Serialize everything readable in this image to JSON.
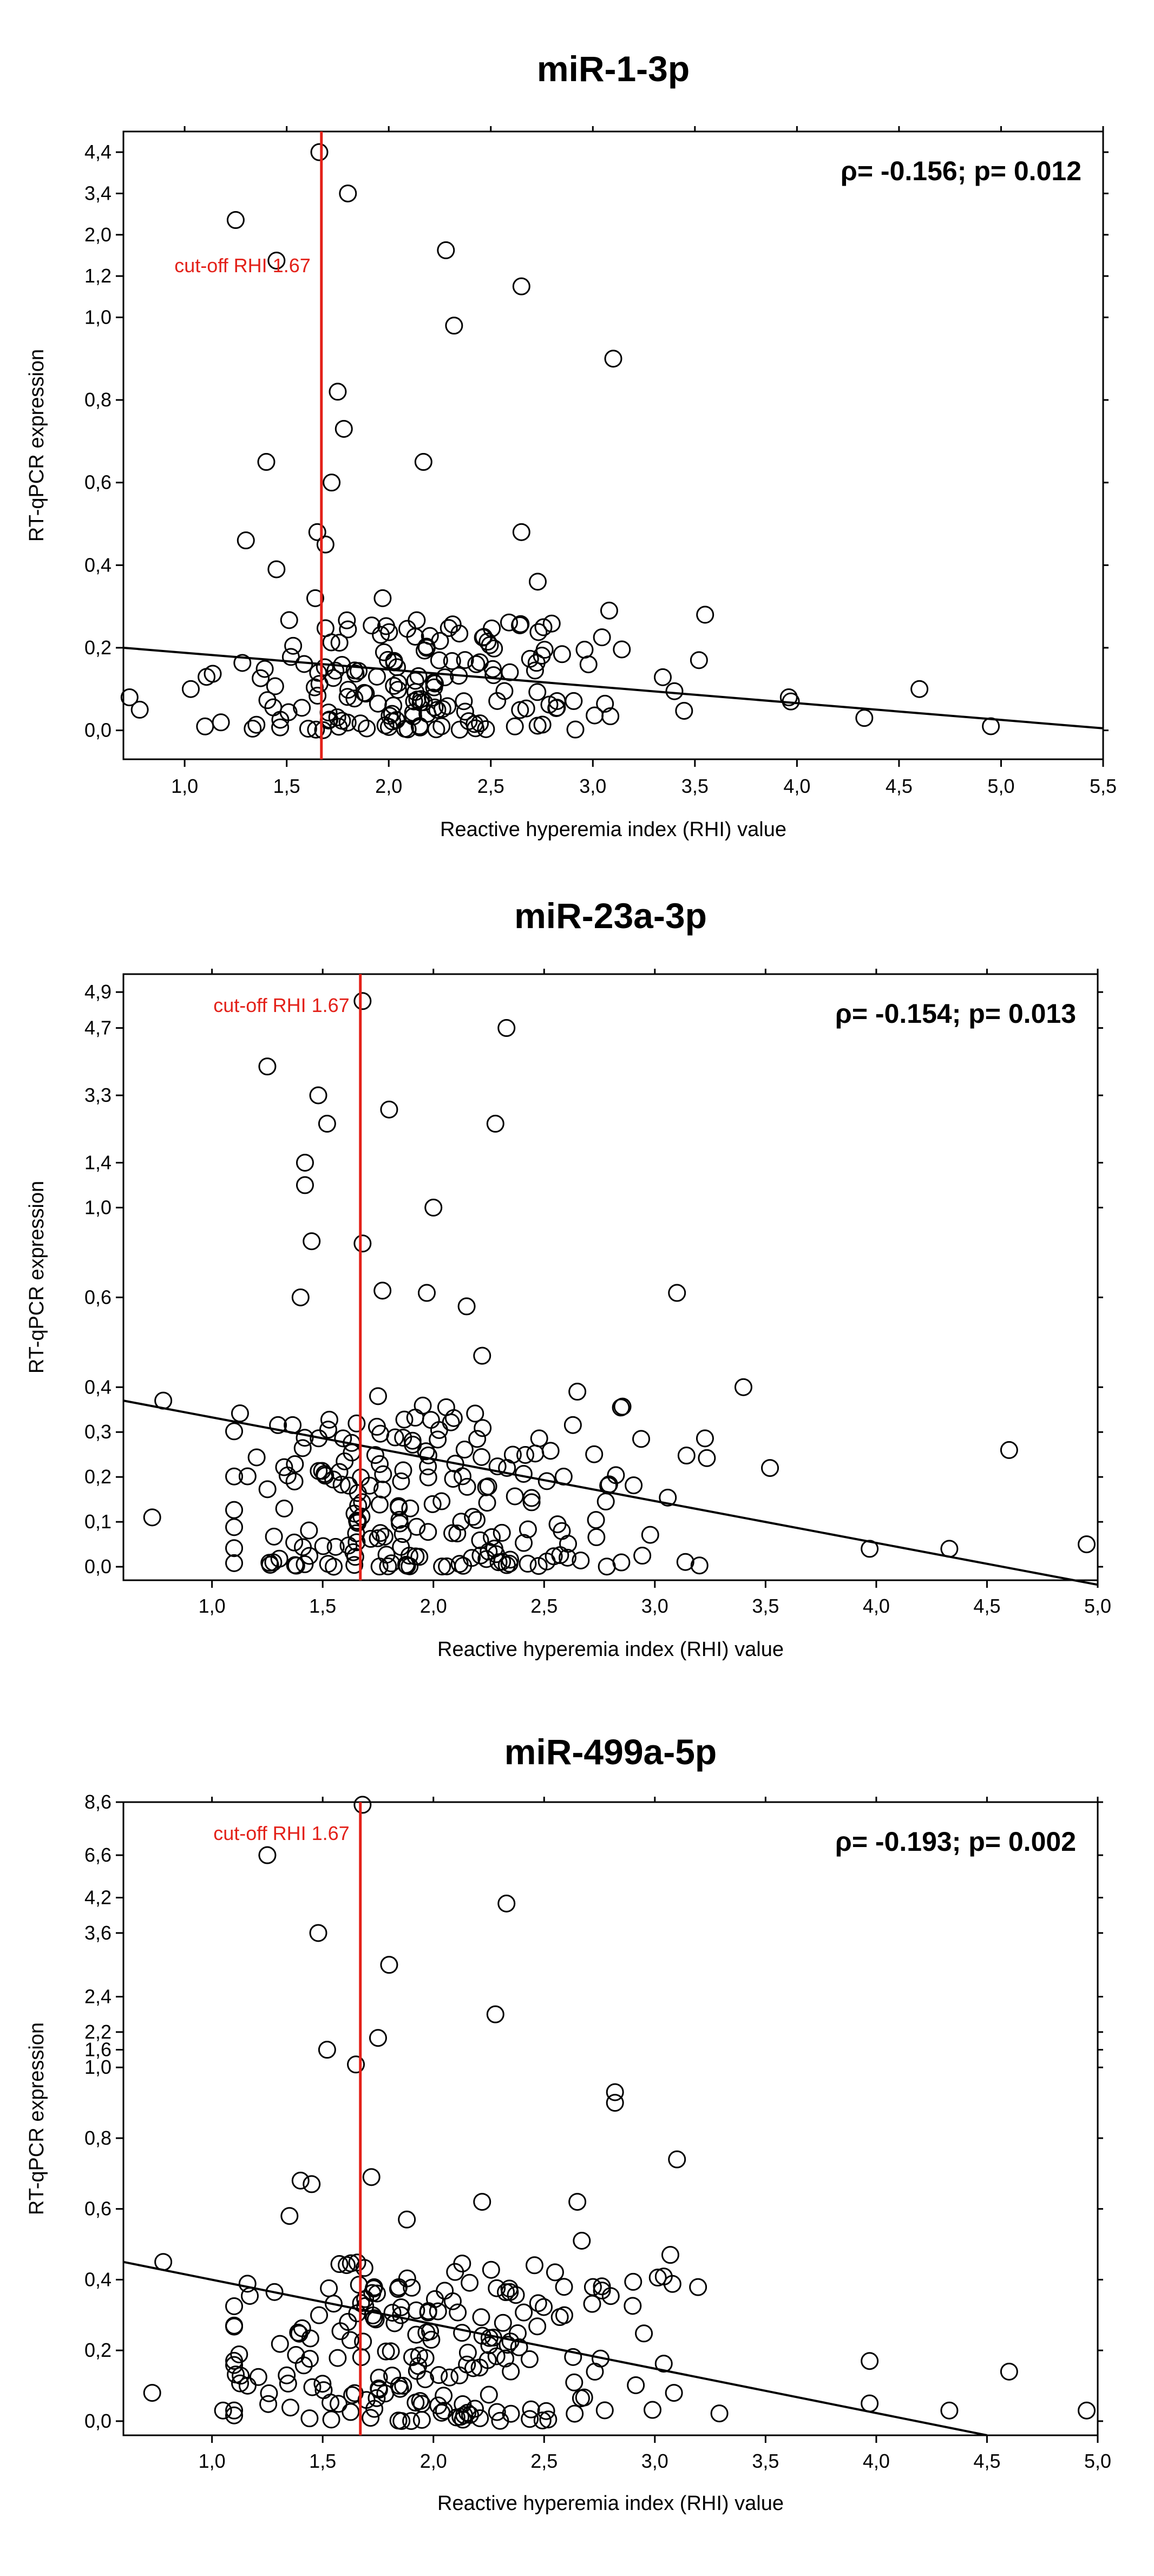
{
  "figure": {
    "x_axis_label": "Reactive hyperemia index (RHI) value",
    "y_axis_label": "RT-qPCR expression"
  },
  "colors": {
    "cutoff": "#e32119",
    "axis": "#000000",
    "marker": "#000000",
    "background": "#ffffff"
  },
  "chart_data": [
    {
      "type": "scatter",
      "title": "miR-1-3p",
      "xlabel": "Reactive hyperemia index (RHI) value",
      "ylabel": "RT-qPCR expression",
      "xlim": [
        0.7,
        5.5
      ],
      "x_ticks": [
        1.0,
        1.5,
        2.0,
        2.5,
        3.0,
        3.5,
        4.0,
        4.5,
        5.0,
        5.5
      ],
      "x_tick_labels": [
        "1,0",
        "1,5",
        "2,0",
        "2,5",
        "3,0",
        "3,5",
        "4,0",
        "4,5",
        "5,0",
        "5,5"
      ],
      "y_ticks": [
        0,
        0.2,
        0.4,
        0.6,
        0.8,
        1.0,
        1.2,
        2.0,
        3.4,
        4.4
      ],
      "y_tick_labels": [
        "0,0",
        "0,2",
        "0,4",
        "0,6",
        "0,8",
        "1,0",
        "1,2",
        "2,0",
        "3,4",
        "4,4"
      ],
      "y_tick_display": [
        0,
        0.2,
        0.4,
        0.6,
        0.8,
        1.0,
        1.1,
        1.2,
        1.3,
        1.4
      ],
      "ylim_display": [
        -0.07,
        1.45
      ],
      "cutoff": {
        "x": 1.67,
        "label": "cut-off RHI 1.67"
      },
      "annotation": "ρ= -0.156; p= 0.012",
      "annotation_position": "top-right",
      "cutoff_label_position": "left",
      "trend": {
        "x": [
          0.7,
          5.5
        ],
        "y": [
          0.2,
          0.005
        ]
      },
      "points_outliers": [
        [
          1.25,
          2.5
        ],
        [
          1.66,
          4.4
        ],
        [
          1.8,
          3.4
        ],
        [
          1.45,
          1.5
        ],
        [
          2.28,
          1.7
        ],
        [
          2.65,
          1.15
        ],
        [
          2.32,
          0.98
        ],
        [
          3.1,
          0.9
        ],
        [
          1.75,
          0.82
        ],
        [
          1.78,
          0.73
        ],
        [
          1.4,
          0.65
        ],
        [
          1.72,
          0.6
        ],
        [
          2.17,
          0.65
        ],
        [
          1.3,
          0.46
        ],
        [
          1.65,
          0.48
        ],
        [
          1.69,
          0.45
        ],
        [
          2.65,
          0.48
        ],
        [
          1.45,
          0.39
        ],
        [
          2.73,
          0.36
        ],
        [
          1.64,
          0.32
        ],
        [
          1.97,
          0.32
        ],
        [
          3.08,
          0.29
        ],
        [
          3.55,
          0.28
        ],
        [
          3.52,
          0.17
        ],
        [
          3.96,
          0.08
        ],
        [
          3.97,
          0.07
        ],
        [
          4.6,
          0.1
        ],
        [
          4.33,
          0.03
        ],
        [
          4.95,
          0.01
        ],
        [
          0.73,
          0.08
        ],
        [
          0.78,
          0.05
        ],
        [
          1.03,
          0.1
        ]
      ],
      "cloud": {
        "n": 170,
        "seed": 11,
        "x_range": [
          1.1,
          3.6
        ],
        "x_center": 2.1,
        "y_max": 0.27
      }
    },
    {
      "type": "scatter",
      "title": "miR-23a-3p",
      "xlabel": "Reactive hyperemia index (RHI) value",
      "ylabel": "RT-qPCR expression",
      "xlim": [
        0.6,
        5.0
      ],
      "x_ticks": [
        1.0,
        1.5,
        2.0,
        2.5,
        3.0,
        3.5,
        4.0,
        4.5,
        5.0
      ],
      "x_tick_labels": [
        "1,0",
        "1,5",
        "2,0",
        "2,5",
        "3,0",
        "3,5",
        "4,0",
        "4,5",
        "5,0"
      ],
      "y_ticks": [
        0,
        0.1,
        0.2,
        0.3,
        0.4,
        0.6,
        1.0,
        1.4,
        3.3,
        4.7,
        4.9
      ],
      "y_tick_labels": [
        "0,0",
        "0,1",
        "0,2",
        "0,3",
        "0,4",
        "0,6",
        "1,0",
        "1,4",
        "3,3",
        "4,7",
        "4,9"
      ],
      "y_tick_display": [
        0,
        0.1,
        0.2,
        0.3,
        0.4,
        0.6,
        0.8,
        0.9,
        1.05,
        1.2,
        1.28
      ],
      "ylim_display": [
        -0.03,
        1.32
      ],
      "cutoff": {
        "x": 1.67,
        "label": "cut-off RHI 1.67"
      },
      "annotation": "ρ= -0.154; p= 0.013",
      "annotation_position": "top-right",
      "cutoff_label_position": "left-top",
      "trend": {
        "x": [
          0.6,
          5.0
        ],
        "y": [
          0.37,
          -0.04
        ]
      },
      "points_outliers": [
        [
          1.68,
          4.85
        ],
        [
          2.33,
          4.7
        ],
        [
          1.25,
          3.9
        ],
        [
          1.48,
          3.3
        ],
        [
          1.8,
          2.9
        ],
        [
          1.52,
          2.5
        ],
        [
          2.28,
          2.5
        ],
        [
          1.42,
          1.4
        ],
        [
          1.42,
          1.2
        ],
        [
          2.0,
          1.0
        ],
        [
          1.45,
          0.85
        ],
        [
          1.68,
          0.84
        ],
        [
          1.4,
          0.6
        ],
        [
          1.77,
          0.63
        ],
        [
          1.97,
          0.62
        ],
        [
          2.15,
          0.58
        ],
        [
          3.1,
          0.62
        ],
        [
          2.22,
          0.47
        ],
        [
          3.4,
          0.4
        ],
        [
          2.65,
          0.39
        ],
        [
          1.75,
          0.38
        ],
        [
          0.78,
          0.37
        ],
        [
          4.6,
          0.26
        ],
        [
          3.52,
          0.22
        ],
        [
          4.95,
          0.05
        ],
        [
          3.97,
          0.04
        ],
        [
          4.33,
          0.04
        ],
        [
          0.73,
          0.11
        ]
      ],
      "cloud": {
        "n": 200,
        "seed": 23,
        "x_range": [
          1.1,
          3.6
        ],
        "x_center": 2.0,
        "y_max": 0.36
      }
    },
    {
      "type": "scatter",
      "title": "miR-499a-5p",
      "xlabel": "Reactive hyperemia index (RHI) value",
      "ylabel": "RT-qPCR expression",
      "xlim": [
        0.6,
        5.0
      ],
      "x_ticks": [
        1.0,
        1.5,
        2.0,
        2.5,
        3.0,
        3.5,
        4.0,
        4.5,
        5.0
      ],
      "x_tick_labels": [
        "1,0",
        "1,5",
        "2,0",
        "2,5",
        "3,0",
        "3,5",
        "4,0",
        "4,5",
        "5,0"
      ],
      "y_ticks": [
        0,
        0.2,
        0.4,
        0.6,
        0.8,
        1.0,
        1.6,
        2.2,
        2.4,
        3.6,
        4.2,
        6.6,
        8.6
      ],
      "y_tick_labels": [
        "0,0",
        "0,2",
        "0,4",
        "0,6",
        "0,8",
        "1,0",
        "1,6",
        "2,2",
        "2,4",
        "3,6",
        "4,2",
        "6,6",
        "8,6"
      ],
      "y_tick_display": [
        0,
        0.2,
        0.4,
        0.6,
        0.8,
        1.0,
        1.05,
        1.1,
        1.2,
        1.38,
        1.48,
        1.6,
        1.75
      ],
      "ylim_display": [
        -0.04,
        1.75
      ],
      "cutoff": {
        "x": 1.67,
        "label": "cut-off RHI 1.67"
      },
      "annotation": "ρ= -0.193; p= 0.002",
      "annotation_position": "top-right",
      "cutoff_label_position": "left-top",
      "trend": {
        "x": [
          0.6,
          4.5
        ],
        "y": [
          0.45,
          -0.04
        ]
      },
      "points_outliers": [
        [
          1.68,
          8.5
        ],
        [
          1.25,
          6.6
        ],
        [
          2.33,
          4.1
        ],
        [
          1.48,
          3.6
        ],
        [
          1.8,
          3.0
        ],
        [
          2.28,
          2.3
        ],
        [
          1.75,
          2.0
        ],
        [
          1.52,
          1.6
        ],
        [
          1.65,
          1.1
        ],
        [
          2.82,
          0.93
        ],
        [
          2.82,
          0.9
        ],
        [
          3.1,
          0.74
        ],
        [
          1.72,
          0.69
        ],
        [
          1.4,
          0.68
        ],
        [
          1.45,
          0.67
        ],
        [
          2.22,
          0.62
        ],
        [
          2.65,
          0.62
        ],
        [
          1.35,
          0.58
        ],
        [
          1.88,
          0.57
        ],
        [
          2.67,
          0.51
        ],
        [
          3.07,
          0.47
        ],
        [
          0.78,
          0.45
        ],
        [
          4.6,
          0.14
        ],
        [
          3.97,
          0.17
        ],
        [
          3.97,
          0.05
        ],
        [
          4.33,
          0.03
        ],
        [
          4.95,
          0.03
        ],
        [
          1.05,
          0.03
        ],
        [
          0.73,
          0.08
        ]
      ],
      "cloud": {
        "n": 200,
        "seed": 37,
        "x_range": [
          1.1,
          3.6
        ],
        "x_center": 2.0,
        "y_max": 0.45
      }
    }
  ]
}
